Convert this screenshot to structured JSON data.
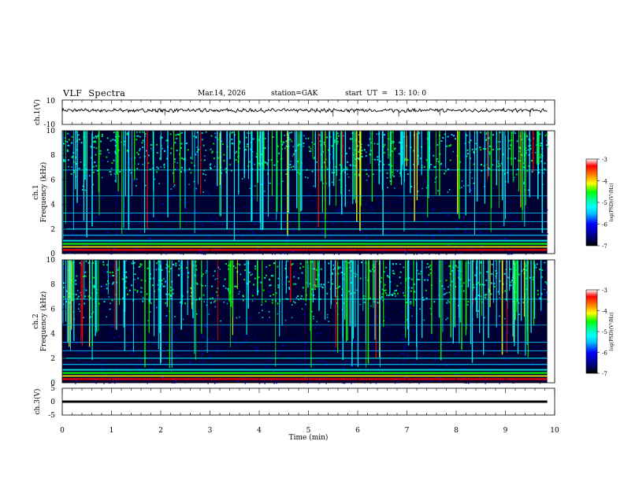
{
  "header": {
    "title": "VLF  Spectra",
    "date": "Mar.14, 2026",
    "station": "station=GAK",
    "start": "start  UT  =   13: 10: 0"
  },
  "colors": {
    "background": "#000033",
    "noise": "#0a0f8c",
    "colormap": [
      "#000000",
      "#00008b",
      "#0000ff",
      "#00bfff",
      "#00ffff",
      "#00ff80",
      "#00ff00",
      "#ffff00",
      "#ff8000",
      "#ff0000",
      "#ffffff"
    ]
  },
  "chart_data": [
    {
      "type": "line",
      "panel": "ch1-waveform",
      "ylabel": "ch.1(V)",
      "ylim": [
        -10,
        10
      ],
      "yticks": [
        "10",
        "-10"
      ],
      "description_value": "near-constant trace around 1.5 V with noise",
      "x": [
        0,
        10
      ],
      "y_level": 1.5
    },
    {
      "type": "heatmap",
      "panel": "ch1-spectrogram",
      "ylabel": "ch.1\nFrequency  (kHz)",
      "ylim": [
        0,
        10
      ],
      "yticks": [
        "0",
        "2",
        "4",
        "6",
        "8",
        "10"
      ],
      "colorbar": {
        "label": "log(PSD)(V²/Hz)",
        "range": [
          -7,
          -3
        ],
        "ticks": [
          "-3",
          "-4",
          "-5",
          "-6",
          "-7"
        ]
      }
    },
    {
      "type": "heatmap",
      "panel": "ch2-spectrogram",
      "ylabel": "ch.2\nFrequency  (kHz)",
      "ylim": [
        0,
        10
      ],
      "yticks": [
        "0",
        "2",
        "4",
        "6",
        "8",
        "10"
      ],
      "colorbar": {
        "label": "log(PSD)(V²/Hz)",
        "range": [
          -7,
          -3
        ],
        "ticks": [
          "-3",
          "-4",
          "-5",
          "-6",
          "-7"
        ]
      }
    },
    {
      "type": "line",
      "panel": "ch3-waveform",
      "ylabel": "ch.3(V)",
      "ylim": [
        -5,
        5
      ],
      "yticks": [
        "5",
        "0",
        "-5"
      ],
      "x": [
        0,
        10
      ],
      "y_level": 0
    }
  ],
  "xaxis": {
    "label": "Time  (min)",
    "range": [
      0,
      10
    ],
    "ticks": [
      "0",
      "1",
      "2",
      "3",
      "4",
      "5",
      "6",
      "7",
      "8",
      "9",
      "10"
    ]
  }
}
